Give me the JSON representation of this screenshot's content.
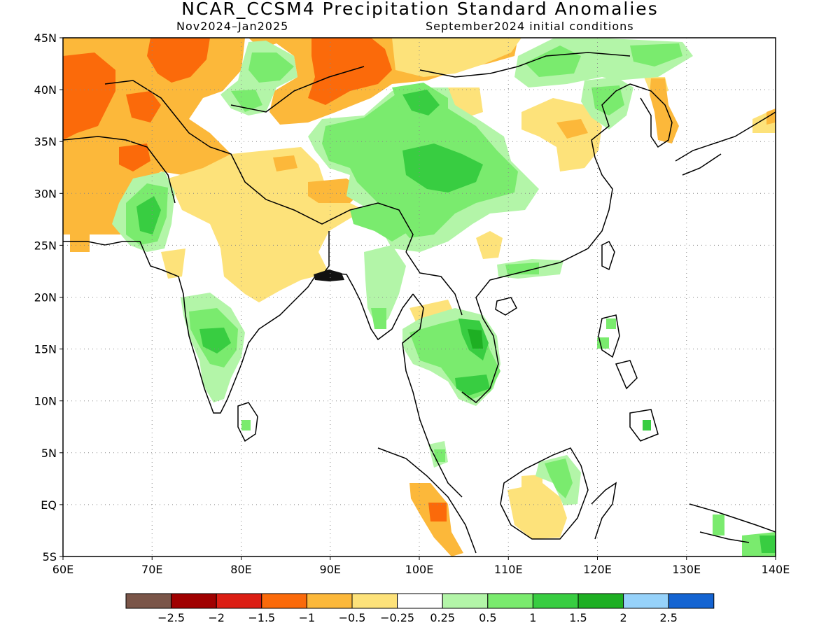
{
  "header": {
    "title": "NCAR_CCSM4 Precipitation Standard Anomalies",
    "period": "Nov2024–Jan2025",
    "init": "September2024 initial conditions"
  },
  "map": {
    "lon_range": [
      60,
      140
    ],
    "lat_range": [
      -5,
      45
    ],
    "lon_ticks": [
      {
        "v": 60,
        "label": "60E"
      },
      {
        "v": 70,
        "label": "70E"
      },
      {
        "v": 80,
        "label": "80E"
      },
      {
        "v": 90,
        "label": "90E"
      },
      {
        "v": 100,
        "label": "100E"
      },
      {
        "v": 110,
        "label": "110E"
      },
      {
        "v": 120,
        "label": "120E"
      },
      {
        "v": 130,
        "label": "130E"
      },
      {
        "v": 140,
        "label": "140E"
      }
    ],
    "lat_ticks": [
      {
        "v": 45,
        "label": "45N"
      },
      {
        "v": 40,
        "label": "40N"
      },
      {
        "v": 35,
        "label": "35N"
      },
      {
        "v": 30,
        "label": "30N"
      },
      {
        "v": 25,
        "label": "25N"
      },
      {
        "v": 20,
        "label": "20N"
      },
      {
        "v": 15,
        "label": "15N"
      },
      {
        "v": 10,
        "label": "10N"
      },
      {
        "v": 5,
        "label": "5N"
      },
      {
        "v": 0,
        "label": "EQ"
      },
      {
        "v": -5,
        "label": "5S"
      }
    ],
    "colors": {
      "brown": "#7a5548",
      "darkred": "#a00000",
      "red": "#dc1e14",
      "dorange": "#fb6a0a",
      "orange": "#fcb83a",
      "lorange": "#fde27a",
      "white": "#ffffff",
      "lgreen": "#b3f5a8",
      "green": "#7aeb6e",
      "mgreen": "#38cd41",
      "dgreen": "#1eaf23",
      "lblue": "#96d2fa",
      "blue": "#1464d2"
    }
  },
  "legend": {
    "colors": [
      "#7a5548",
      "#a00000",
      "#dc1e14",
      "#fb6a0a",
      "#fcb83a",
      "#fde27a",
      "#ffffff",
      "#b3f5a8",
      "#7aeb6e",
      "#38cd41",
      "#1eaf23",
      "#96d2fa",
      "#1464d2"
    ],
    "labels": [
      "−2.5",
      "−2",
      "−1.5",
      "−1",
      "−0.5",
      "−0.25",
      "0.25",
      "0.5",
      "1",
      "1.5",
      "2",
      "2.5"
    ]
  }
}
